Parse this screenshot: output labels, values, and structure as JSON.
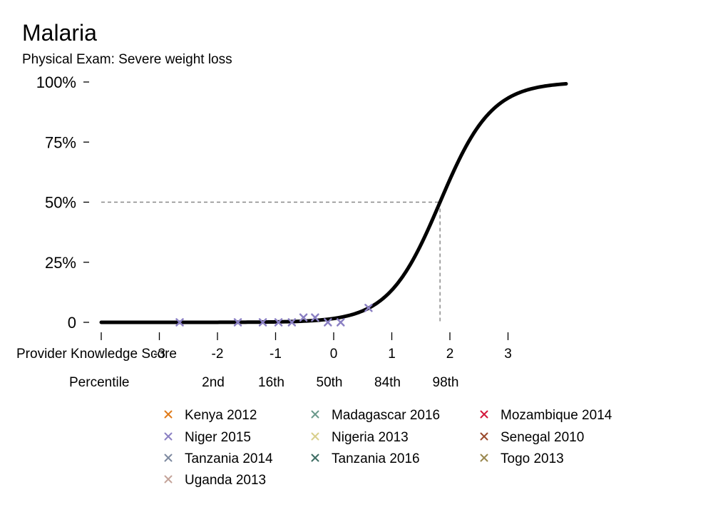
{
  "chart_data": {
    "type": "scatter",
    "title": "Malaria",
    "subtitle": "Physical Exam: Severe weight loss",
    "xlabel": "Provider Knowledge Score",
    "percentile_label": "Percentile",
    "xlim": [
      -4.0,
      4.0
    ],
    "ylim": [
      0,
      1
    ],
    "x_ticks": [
      -4,
      -3,
      -2,
      -1,
      0,
      1,
      2,
      3
    ],
    "x_tick_labels": [
      "",
      "-3",
      "-2",
      "-1",
      "0",
      "1",
      "2",
      "3"
    ],
    "percentile_ticks": [
      {
        "x": -2,
        "label": "2nd"
      },
      {
        "x": -1,
        "label": "16th"
      },
      {
        "x": 0,
        "label": "50th"
      },
      {
        "x": 1,
        "label": "84th"
      },
      {
        "x": 2,
        "label": "98th"
      }
    ],
    "y_ticks": [
      0,
      0.25,
      0.5,
      0.75,
      1.0
    ],
    "y_tick_labels": [
      "0",
      "25%",
      "50%",
      "75%",
      "100%"
    ],
    "grid": false,
    "curve": {
      "type": "logistic",
      "midpoint": 1.83,
      "slope": 2.25,
      "color": "#000000"
    },
    "reference_point": {
      "x": 1.83,
      "y": 0.5
    },
    "series": [
      {
        "name": "Niger 2015",
        "color": "#8b80c3",
        "points": [
          {
            "x": -2.65,
            "y": 0.0
          },
          {
            "x": -1.65,
            "y": 0.0
          },
          {
            "x": -1.22,
            "y": 0.0
          },
          {
            "x": -0.95,
            "y": 0.0
          },
          {
            "x": -0.72,
            "y": 0.0
          },
          {
            "x": -0.52,
            "y": 0.02
          },
          {
            "x": -0.32,
            "y": 0.02
          },
          {
            "x": -0.1,
            "y": 0.0
          },
          {
            "x": 0.12,
            "y": 0.0
          },
          {
            "x": 0.6,
            "y": 0.06
          }
        ]
      }
    ],
    "legend": {
      "placement": "bottom",
      "entries": [
        {
          "name": "Kenya 2012",
          "color": "#e07b1a"
        },
        {
          "name": "Madagascar 2016",
          "color": "#6b9a8c"
        },
        {
          "name": "Mozambique 2014",
          "color": "#d4183d"
        },
        {
          "name": "Niger 2015",
          "color": "#8b80c3"
        },
        {
          "name": "Nigeria 2013",
          "color": "#d9cf8c"
        },
        {
          "name": "Senegal 2010",
          "color": "#9a4a2c"
        },
        {
          "name": "Tanzania 2014",
          "color": "#7e8aa0"
        },
        {
          "name": "Tanzania 2016",
          "color": "#3f6e64"
        },
        {
          "name": "Togo 2013",
          "color": "#9a8850"
        },
        {
          "name": "Uganda 2013",
          "color": "#c4a49a"
        }
      ]
    }
  }
}
